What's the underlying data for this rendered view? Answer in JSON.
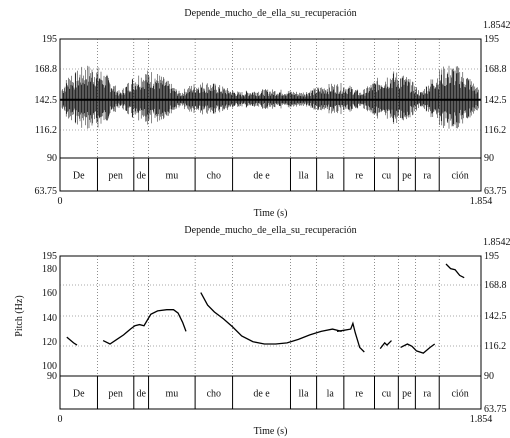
{
  "chart_data": [
    {
      "type": "line",
      "title": "Depende_mucho_de_ella_su_recuperación",
      "xlabel": "Time (s)",
      "ylabel": "",
      "xlim": [
        0,
        1.854
      ],
      "x_tick_labels": [
        "0",
        "1.854"
      ],
      "ylim": [
        63.75,
        195
      ],
      "y_right_top_label": "1.85425",
      "y_ticks_left": [
        "195",
        "168.8",
        "142.5",
        "116.2",
        "90",
        "63.75"
      ],
      "y_ticks_right": [
        "195",
        "168.8",
        "142.5",
        "116.2",
        "90",
        "63.75"
      ],
      "grid": true,
      "segments": [
        {
          "label": "De",
          "start": 0.0,
          "end": 0.165
        },
        {
          "label": "pen",
          "start": 0.165,
          "end": 0.325
        },
        {
          "label": "de",
          "start": 0.325,
          "end": 0.39
        },
        {
          "label": "mu",
          "start": 0.39,
          "end": 0.595
        },
        {
          "label": "cho",
          "start": 0.595,
          "end": 0.76
        },
        {
          "label": "de e",
          "start": 0.76,
          "end": 1.015
        },
        {
          "label": "lla",
          "start": 1.015,
          "end": 1.13
        },
        {
          "label": "la",
          "start": 1.13,
          "end": 1.25
        },
        {
          "label": "re",
          "start": 1.25,
          "end": 1.385
        },
        {
          "label": "cu",
          "start": 1.385,
          "end": 1.49
        },
        {
          "label": "pe",
          "start": 1.49,
          "end": 1.565
        },
        {
          "label": "ra",
          "start": 1.565,
          "end": 1.67
        },
        {
          "label": "ción",
          "start": 1.67,
          "end": 1.854
        }
      ],
      "waveform_baseline": 142.5
    },
    {
      "type": "line",
      "title": "Depende_mucho_de_ella_su_recuperación",
      "xlabel": "Time (s)",
      "ylabel": "Pitch (Hz)",
      "xlim": [
        0,
        1.854
      ],
      "x_tick_labels": [
        "0",
        "1.854"
      ],
      "ylim": [
        90,
        195
      ],
      "y_right_top_label": "1.85425",
      "y_ticks_left": [
        "195",
        "180",
        "160",
        "140",
        "120",
        "100",
        "90"
      ],
      "y_ticks_right": [
        "195",
        "168.8",
        "142.5",
        "116.2",
        "90",
        "63.75"
      ],
      "grid": true,
      "segments": [
        {
          "label": "De",
          "start": 0.0,
          "end": 0.165
        },
        {
          "label": "pen",
          "start": 0.165,
          "end": 0.325
        },
        {
          "label": "de",
          "start": 0.325,
          "end": 0.39
        },
        {
          "label": "mu",
          "start": 0.39,
          "end": 0.595
        },
        {
          "label": "cho",
          "start": 0.595,
          "end": 0.76
        },
        {
          "label": "de e",
          "start": 0.76,
          "end": 1.015
        },
        {
          "label": "lla",
          "start": 1.015,
          "end": 1.13
        },
        {
          "label": "la",
          "start": 1.13,
          "end": 1.25
        },
        {
          "label": "re",
          "start": 1.25,
          "end": 1.385
        },
        {
          "label": "cu",
          "start": 1.385,
          "end": 1.49
        },
        {
          "label": "pe",
          "start": 1.49,
          "end": 1.565
        },
        {
          "label": "ra",
          "start": 1.565,
          "end": 1.67
        },
        {
          "label": "ción",
          "start": 1.67,
          "end": 1.854
        }
      ],
      "series": [
        {
          "values": [
            [
              0.03,
              124
            ],
            [
              0.06,
              119
            ],
            [
              0.075,
              117
            ]
          ]
        },
        {
          "values": [
            [
              0.19,
              121
            ],
            [
              0.22,
              118
            ],
            [
              0.25,
              122
            ],
            [
              0.28,
              126
            ],
            [
              0.31,
              131
            ],
            [
              0.33,
              134
            ],
            [
              0.35,
              135
            ],
            [
              0.37,
              134
            ],
            [
              0.4,
              144
            ],
            [
              0.43,
              147
            ],
            [
              0.47,
              148
            ],
            [
              0.5,
              148
            ],
            [
              0.52,
              145
            ],
            [
              0.54,
              137
            ],
            [
              0.555,
              129
            ]
          ]
        },
        {
          "values": [
            [
              0.62,
              163
            ],
            [
              0.65,
              152
            ],
            [
              0.68,
              146
            ],
            [
              0.72,
              140
            ],
            [
              0.76,
              133
            ],
            [
              0.8,
              125
            ],
            [
              0.85,
              120
            ],
            [
              0.9,
              118
            ],
            [
              0.95,
              118
            ],
            [
              1.0,
              119
            ],
            [
              1.05,
              122
            ],
            [
              1.1,
              126
            ],
            [
              1.15,
              129
            ],
            [
              1.2,
              131
            ],
            [
              1.24,
              129
            ]
          ]
        },
        {
          "values": [
            [
              1.22,
              129
            ],
            [
              1.25,
              130
            ],
            [
              1.28,
              131
            ],
            [
              1.29,
              136
            ],
            [
              1.3,
              128
            ],
            [
              1.32,
              115
            ],
            [
              1.34,
              111
            ]
          ]
        },
        {
          "values": [
            [
              1.41,
              114
            ],
            [
              1.43,
              119
            ],
            [
              1.44,
              117
            ],
            [
              1.46,
              121
            ]
          ]
        },
        {
          "values": [
            [
              1.5,
              115
            ],
            [
              1.53,
              118
            ],
            [
              1.55,
              116
            ],
            [
              1.57,
              112
            ],
            [
              1.6,
              110
            ],
            [
              1.63,
              115
            ],
            [
              1.65,
              118
            ]
          ]
        },
        {
          "values": [
            [
              1.7,
              188
            ],
            [
              1.72,
              184
            ],
            [
              1.74,
              183
            ],
            [
              1.76,
              178
            ],
            [
              1.78,
              176
            ]
          ]
        }
      ]
    }
  ]
}
